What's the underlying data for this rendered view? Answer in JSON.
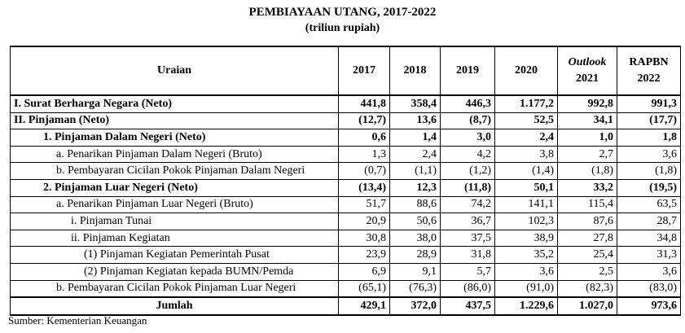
{
  "title": "PEMBIAYAAN UTANG, 2017-2022",
  "subtitle": "(triliun rupiah)",
  "header": {
    "uraian": "Uraian",
    "years": [
      "2017",
      "2018",
      "2019",
      "2020"
    ],
    "outlook_label": "Outlook",
    "outlook_year": "2021",
    "rapbn_label": "RAPBN",
    "rapbn_year": "2022"
  },
  "rows": [
    {
      "label": "I. Surat Berharga Negara (Neto)",
      "values": [
        "441,8",
        "358,4",
        "446,3",
        "1.177,2",
        "992,8",
        "991,3"
      ]
    },
    {
      "label": "II. Pinjaman (Neto)",
      "values": [
        "(12,7)",
        "13,6",
        "(8,7)",
        "52,5",
        "34,1",
        "(17,7)"
      ]
    },
    {
      "label": "1. Pinjaman Dalam Negeri (Neto)",
      "values": [
        "0,6",
        "1,4",
        "3,0",
        "2,4",
        "1,0",
        "1,8"
      ]
    },
    {
      "label": "a. Penarikan Pinjaman Dalam Negeri (Bruto)",
      "values": [
        "1,3",
        "2,4",
        "4,2",
        "3,8",
        "2,7",
        "3,6"
      ]
    },
    {
      "label": "b. Pembayaran Cicilan Pokok Pinjaman Dalam Negeri",
      "values": [
        "(0,7)",
        "(1,1)",
        "(1,2)",
        "(1,4)",
        "(1,8)",
        "(1,8)"
      ]
    },
    {
      "label": "2. Pinjaman Luar Negeri (Neto)",
      "values": [
        "(13,4)",
        "12,3",
        "(11,8)",
        "50,1",
        "33,2",
        "(19,5)"
      ]
    },
    {
      "label": "a. Penarikan Pinjaman Luar Negeri (Bruto)",
      "values": [
        "51,7",
        "88,6",
        "74,2",
        "141,1",
        "115,4",
        "63,5"
      ]
    },
    {
      "label": "i. Pinjaman Tunai",
      "values": [
        "20,9",
        "50,6",
        "36,7",
        "102,3",
        "87,6",
        "28,7"
      ]
    },
    {
      "label": "ii. Pinjaman Kegiatan",
      "values": [
        "30,8",
        "38,0",
        "37,5",
        "38,9",
        "27,8",
        "34,8"
      ]
    },
    {
      "label": "(1) Pinjaman Kegiatan Pemerintah Pusat",
      "values": [
        "23,9",
        "28,9",
        "31,8",
        "35,2",
        "25,4",
        "31,3"
      ]
    },
    {
      "label": "(2) Pinjaman Kegiatan kepada BUMN/Pemda",
      "values": [
        "6,9",
        "9,1",
        "5,7",
        "3,6",
        "2,5",
        "3,6"
      ]
    },
    {
      "label": "b. Pembayaran Cicilan Pokok Pinjaman Luar Negeri",
      "values": [
        "(65,1)",
        "(76,3)",
        "(86,0)",
        "(91,0)",
        "(82,3)",
        "(83,0)"
      ]
    }
  ],
  "total": {
    "label": "Jumlah",
    "values": [
      "429,1",
      "372,0",
      "437,5",
      "1.229,6",
      "1.027,0",
      "973,6"
    ]
  },
  "source": "Sumber: Kementerian Keuangan"
}
